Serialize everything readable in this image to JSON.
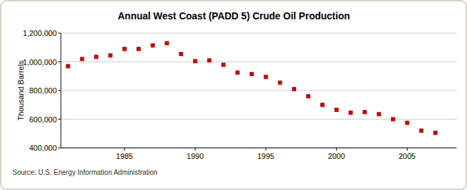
{
  "chart_data": {
    "type": "scatter",
    "title": "Annual West Coast (PADD 5) Crude Oil Production",
    "y_label": "Thousand Barrels",
    "source": "Source: U.S. Energy Information Administration",
    "x": [
      1981,
      1982,
      1983,
      1984,
      1985,
      1986,
      1987,
      1988,
      1989,
      1990,
      1991,
      1992,
      1993,
      1994,
      1995,
      1996,
      1997,
      1998,
      1999,
      2000,
      2001,
      2002,
      2003,
      2004,
      2005,
      2006,
      2007
    ],
    "values": [
      970000,
      1020000,
      1035000,
      1045000,
      1090000,
      1090000,
      1115000,
      1130000,
      1055000,
      1005000,
      1010000,
      980000,
      925000,
      915000,
      895000,
      855000,
      810000,
      760000,
      700000,
      665000,
      645000,
      650000,
      635000,
      600000,
      575000,
      520000,
      505000
    ],
    "color": "#cc0000",
    "marker": "square",
    "xlim": [
      1980.5,
      2008.5
    ],
    "xticks": [
      1985,
      1990,
      1995,
      2000,
      2005
    ],
    "ylim": [
      400000,
      1200000
    ],
    "yticks": [
      {
        "value": 400000,
        "label": "400,000"
      },
      {
        "value": 600000,
        "label": "600,000"
      },
      {
        "value": 800000,
        "label": "800,000"
      },
      {
        "value": 1000000,
        "label": "1,000,000"
      },
      {
        "value": 1200000,
        "label": "1,200,000"
      }
    ],
    "grid": true
  }
}
